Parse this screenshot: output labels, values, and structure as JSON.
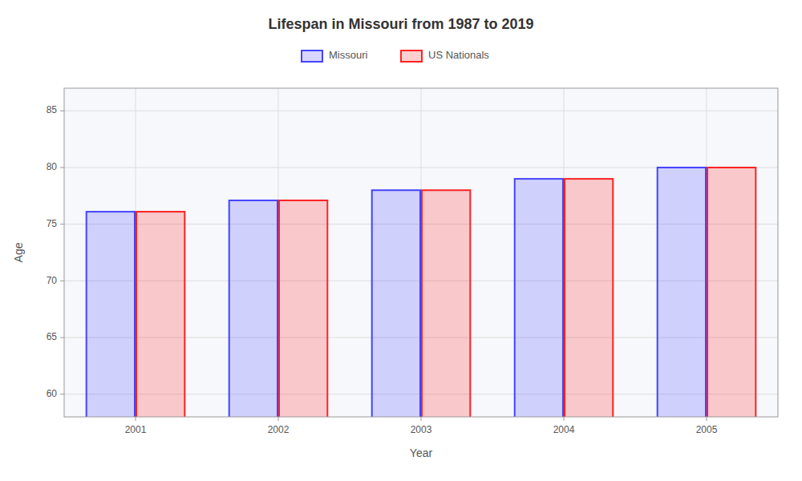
{
  "chart_data": {
    "type": "bar",
    "title": "Lifespan in Missouri from 1987 to 2019",
    "x_label": "Year",
    "y_label": "Age",
    "categories": [
      "2001",
      "2002",
      "2003",
      "2004",
      "2005"
    ],
    "series": [
      {
        "name": "Missouri",
        "color": "#4444ff",
        "values": [
          76.1,
          77.1,
          78.0,
          79.0,
          80.0
        ]
      },
      {
        "name": "US Nationals",
        "color": "#ff2222",
        "values": [
          76.1,
          77.1,
          78.0,
          79.0,
          80.0
        ]
      }
    ],
    "ylim": [
      58,
      87
    ],
    "yticks": [
      60,
      65,
      70,
      75,
      80,
      85
    ],
    "grid": true,
    "legend": "top"
  }
}
